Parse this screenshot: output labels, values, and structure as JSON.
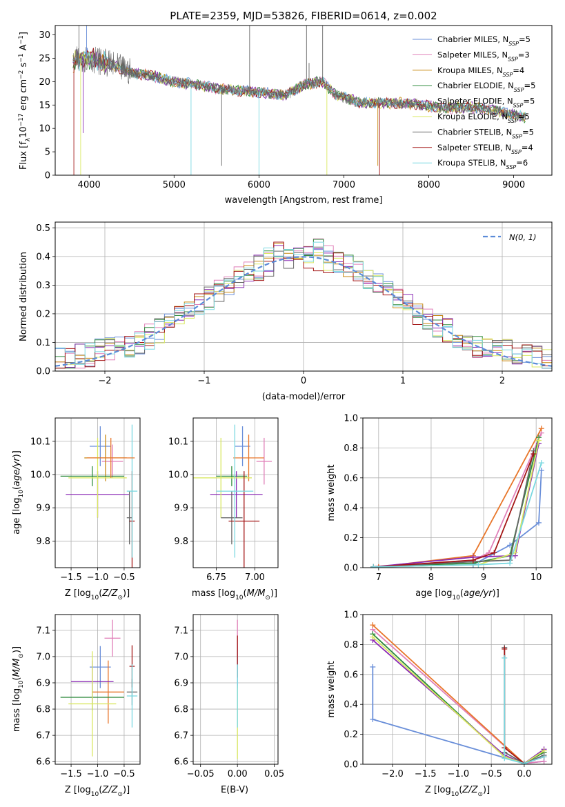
{
  "figure": {
    "title": "PLATE=2359, MJD=53826, FIBERID=0614, z=0.002"
  },
  "colors": {
    "Chabrier MILES": "#6a8fd9",
    "Salpeter MILES": "#e07fb8",
    "Kroupa MILES": "#c7870f",
    "Chabrier ELODIE": "#2e8b3c",
    "Salpeter ELODIE": "#8b2bb5",
    "Kroupa ELODIE": "#d9e860",
    "Chabrier STELIB": "#666666",
    "Salpeter STELIB": "#a31515",
    "Kroupa STELIB": "#79d8e0",
    "orange": "#e8762a",
    "normal_curve": "#5b8bd8"
  },
  "chart_data": [
    {
      "id": "spectrum",
      "type": "line",
      "xlabel": "wavelength [Angstrom, rest frame]",
      "ylabel_parts": [
        "Flux [f",
        "λ",
        "10",
        "−17",
        " erg cm",
        "−2",
        " s",
        "−1",
        " A",
        "−1",
        "]"
      ],
      "xlim": [
        3600,
        9450
      ],
      "ylim": [
        0,
        32
      ],
      "xticks": [
        4000,
        5000,
        6000,
        7000,
        8000,
        9000
      ],
      "yticks": [
        0,
        5,
        10,
        15,
        20,
        25,
        30
      ],
      "continuum": [
        [
          3800,
          24
        ],
        [
          3900,
          25
        ],
        [
          4000,
          25
        ],
        [
          4200,
          24
        ],
        [
          4500,
          22
        ],
        [
          4800,
          21
        ],
        [
          5000,
          20
        ],
        [
          5200,
          19.5
        ],
        [
          5500,
          18.5
        ],
        [
          5800,
          18
        ],
        [
          6000,
          17.8
        ],
        [
          6300,
          17
        ],
        [
          6550,
          19.5
        ],
        [
          6750,
          20
        ],
        [
          6900,
          17.2
        ],
        [
          7200,
          15.5
        ],
        [
          7500,
          15.5
        ],
        [
          7800,
          15.3
        ],
        [
          8000,
          14.8
        ],
        [
          8200,
          14.3
        ],
        [
          8500,
          14.5
        ],
        [
          8800,
          13.8
        ],
        [
          9100,
          12.5
        ]
      ],
      "legend": [
        {
          "name": "Chabrier MILES",
          "n": "5"
        },
        {
          "name": "Salpeter MILES",
          "n": "3"
        },
        {
          "name": "Kroupa MILES",
          "n": "4"
        },
        {
          "name": "Chabrier ELODIE",
          "n": "5"
        },
        {
          "name": "Salpeter ELODIE",
          "n": "5"
        },
        {
          "name": "Kroupa ELODIE",
          "n": "5"
        },
        {
          "name": "Chabrier STELIB",
          "n": "5"
        },
        {
          "name": "Salpeter STELIB",
          "n": "4"
        },
        {
          "name": "Kroupa STELIB",
          "n": "6"
        }
      ],
      "legend_placement": "upper right",
      "grid": false
    },
    {
      "id": "residuals",
      "type": "histogram",
      "xlabel": "(data-model)/error",
      "ylabel": "Normed distribution",
      "xlim": [
        -2.5,
        2.5
      ],
      "ylim": [
        0,
        0.52
      ],
      "xticks": [
        -2,
        -1,
        0,
        1,
        2
      ],
      "yticks": [
        0.0,
        0.1,
        0.2,
        0.3,
        0.4,
        0.5
      ],
      "legend": "N(0, 1)",
      "legend_placement": "upper right",
      "grid": true
    },
    {
      "id": "age-vs-Z",
      "type": "errorbar",
      "xlabel": "Z [log10(Z/Z⊙)]",
      "ylabel": "age  [log10(age/yr)]",
      "xlim": [
        -1.8,
        -0.2
      ],
      "ylim": [
        9.72,
        10.17
      ],
      "xticks": [
        -1.5,
        -1.0,
        -0.5
      ],
      "yticks": [
        9.8,
        9.9,
        10.0,
        10.1
      ],
      "points": [
        {
          "c": "Chabrier MILES",
          "x": -0.95,
          "xe": 0.2,
          "y": 10.085,
          "ye": 0.06
        },
        {
          "c": "Salpeter MILES",
          "x": -0.72,
          "xe": 0.2,
          "y": 10.04,
          "ye": 0.05
        },
        {
          "c": "Kroupa MILES",
          "x": -0.85,
          "xe": 0.4,
          "y": 10.05,
          "ye": 0.07
        },
        {
          "c": "Chabrier ELODIE",
          "x": -1.1,
          "xe": 0.6,
          "y": 9.995,
          "ye": 0.03
        },
        {
          "c": "Salpeter ELODIE",
          "x": -1.0,
          "xe": 0.6,
          "y": 9.94,
          "ye": 0.07
        },
        {
          "c": "Kroupa ELODIE",
          "x": -1.0,
          "xe": 0.55,
          "y": 9.99,
          "ye": 0.12
        },
        {
          "c": "Chabrier STELIB",
          "x": -0.4,
          "xe": 0.05,
          "y": 9.87,
          "ye": 0.08
        },
        {
          "c": "Salpeter STELIB",
          "x": -0.35,
          "xe": 0.05,
          "y": 9.86,
          "ye": 0.15
        },
        {
          "c": "Kroupa STELIB",
          "x": -0.35,
          "xe": 0.1,
          "y": 9.95,
          "ye": 0.2
        },
        {
          "c": "orange",
          "x": -0.75,
          "xe": 0.45,
          "y": 10.05,
          "ye": 0.06
        }
      ],
      "grid": true
    },
    {
      "id": "age-vs-mass",
      "type": "errorbar",
      "xlabel": "mass [log10(M/M⊙)]",
      "ylabel": "",
      "xlim": [
        6.6,
        7.15
      ],
      "ylim": [
        9.72,
        10.17
      ],
      "xticks": [
        6.75,
        7.0
      ],
      "yticks": [
        9.8,
        9.9,
        10.0,
        10.1
      ],
      "points": [
        {
          "c": "Chabrier MILES",
          "x": 6.92,
          "xe": 0.05,
          "y": 10.085,
          "ye": 0.06
        },
        {
          "c": "Salpeter MILES",
          "x": 7.06,
          "xe": 0.05,
          "y": 10.04,
          "ye": 0.07
        },
        {
          "c": "orange",
          "x": 6.96,
          "xe": 0.1,
          "y": 10.05,
          "ye": 0.07
        },
        {
          "c": "Chabrier ELODIE",
          "x": 6.85,
          "xe": 0.1,
          "y": 9.995,
          "ye": 0.03
        },
        {
          "c": "Salpeter ELODIE",
          "x": 6.88,
          "xe": 0.17,
          "y": 9.94,
          "ye": 0.07
        },
        {
          "c": "Kroupa ELODIE",
          "x": 6.78,
          "xe": 0.2,
          "y": 9.99,
          "ye": 0.12
        },
        {
          "c": "Chabrier STELIB",
          "x": 6.85,
          "xe": 0.07,
          "y": 9.87,
          "ye": 0.08
        },
        {
          "c": "Salpeter STELIB",
          "x": 6.93,
          "xe": 0.1,
          "y": 9.86,
          "ye": 0.15
        },
        {
          "c": "Kroupa STELIB",
          "x": 6.87,
          "xe": 0.12,
          "y": 9.95,
          "ye": 0.2
        }
      ],
      "grid": true
    },
    {
      "id": "weight-vs-age",
      "type": "line",
      "xlabel": "age  [log10(age/yr)]",
      "ylabel": "mass weight",
      "xlim": [
        6.7,
        10.3
      ],
      "ylim": [
        0.0,
        1.0
      ],
      "xticks": [
        7,
        8,
        9,
        10
      ],
      "yticks": [
        0.0,
        0.2,
        0.4,
        0.6,
        0.8,
        1.0
      ],
      "series": [
        {
          "c": "Chabrier MILES",
          "x": [
            7.0,
            8.8,
            9.5,
            10.05,
            10.1
          ],
          "y": [
            0.005,
            0.02,
            0.15,
            0.3,
            0.65
          ]
        },
        {
          "c": "Salpeter MILES",
          "x": [
            7.0,
            8.8,
            9.1,
            10.1
          ],
          "y": [
            0.005,
            0.05,
            0.1,
            0.9
          ]
        },
        {
          "c": "orange",
          "x": [
            7.0,
            8.8,
            10.1
          ],
          "y": [
            0.005,
            0.08,
            0.93
          ]
        },
        {
          "c": "Chabrier ELODIE",
          "x": [
            6.9,
            8.8,
            9.5,
            10.05
          ],
          "y": [
            0.005,
            0.03,
            0.08,
            0.87
          ]
        },
        {
          "c": "Salpeter ELODIE",
          "x": [
            6.9,
            8.8,
            9.6,
            10.05
          ],
          "y": [
            0.005,
            0.07,
            0.08,
            0.83
          ]
        },
        {
          "c": "Kroupa ELODIE",
          "x": [
            6.9,
            8.9,
            9.6,
            10.05
          ],
          "y": [
            0.005,
            0.02,
            0.1,
            0.85
          ]
        },
        {
          "c": "Chabrier STELIB",
          "x": [
            6.9,
            8.8,
            9.5,
            9.95
          ],
          "y": [
            0.005,
            0.04,
            0.05,
            0.78
          ]
        },
        {
          "c": "Salpeter STELIB",
          "x": [
            6.9,
            8.8,
            9.2,
            9.95
          ],
          "y": [
            0.005,
            0.05,
            0.1,
            0.76
          ]
        },
        {
          "c": "Kroupa STELIB",
          "x": [
            6.9,
            8.9,
            9.5,
            10.1
          ],
          "y": [
            0.005,
            0.02,
            0.03,
            0.7
          ]
        }
      ],
      "grid": true
    },
    {
      "id": "mass-vs-Z",
      "type": "errorbar",
      "xlabel": "Z [log10(Z/Z⊙)]",
      "ylabel": "mass [log10(M/M⊙)]",
      "xlim": [
        -1.8,
        -0.2
      ],
      "ylim": [
        6.59,
        7.16
      ],
      "xticks": [
        -1.5,
        -1.0,
        -0.5
      ],
      "yticks": [
        6.6,
        6.7,
        6.8,
        6.9,
        7.0,
        7.1
      ],
      "points": [
        {
          "c": "Chabrier MILES",
          "x": -0.95,
          "xe": 0.2,
          "y": 6.96,
          "ye": 0.08
        },
        {
          "c": "Salpeter MILES",
          "x": -0.72,
          "xe": 0.15,
          "y": 7.07,
          "ye": 0.07
        },
        {
          "c": "orange",
          "x": -0.8,
          "xe": 0.3,
          "y": 6.865,
          "ye": 0.12
        },
        {
          "c": "Chabrier ELODIE",
          "x": -1.1,
          "xe": 0.6,
          "y": 6.845,
          "ye": 0.05
        },
        {
          "c": "Salpeter ELODIE",
          "x": -1.1,
          "xe": 0.4,
          "y": 6.905,
          "ye": 0.08
        },
        {
          "c": "Kroupa ELODIE",
          "x": -1.1,
          "xe": 0.45,
          "y": 6.82,
          "ye": 0.2
        },
        {
          "c": "Chabrier STELIB",
          "x": -0.35,
          "xe": 0.1,
          "y": 6.865,
          "ye": 0.05
        },
        {
          "c": "Salpeter STELIB",
          "x": -0.35,
          "xe": 0.05,
          "y": 6.963,
          "ye": 0.08
        },
        {
          "c": "Kroupa STELIB",
          "x": -0.35,
          "xe": 0.1,
          "y": 6.85,
          "ye": 0.12
        }
      ],
      "grid": true
    },
    {
      "id": "mass-vs-EBV",
      "type": "errorbar",
      "xlabel": "E(B-V)",
      "ylabel": "",
      "xlim": [
        -0.06,
        0.055
      ],
      "ylim": [
        6.59,
        7.16
      ],
      "xticks": [
        -0.05,
        0.0,
        0.05
      ],
      "yticks": [
        6.6,
        6.7,
        6.8,
        6.9,
        7.0,
        7.1
      ],
      "points": [
        {
          "c": "Chabrier MILES",
          "x": 0.0,
          "xe": 0,
          "y": 6.96,
          "ye": 0.08
        },
        {
          "c": "Salpeter MILES",
          "x": 0.0,
          "xe": 0,
          "y": 7.07,
          "ye": 0.07
        },
        {
          "c": "Kroupa ELODIE",
          "x": 0.0,
          "xe": 0,
          "y": 6.75,
          "ye": 0.14
        },
        {
          "c": "Salpeter STELIB",
          "x": 0.0,
          "xe": 0,
          "y": 7.0,
          "ye": 0.08
        },
        {
          "c": "Kroupa STELIB",
          "x": 0.0,
          "xe": 0,
          "y": 6.85,
          "ye": 0.12
        }
      ],
      "grid": true
    },
    {
      "id": "weight-vs-Z",
      "type": "line",
      "xlabel": "Z [log10(Z/Z⊙)]",
      "ylabel": "mass weight",
      "xlim": [
        -2.45,
        0.42
      ],
      "ylim": [
        0.0,
        1.0
      ],
      "xticks": [
        -2.0,
        -1.5,
        -1.0,
        -0.5,
        0.0
      ],
      "yticks": [
        0.0,
        0.2,
        0.4,
        0.6,
        0.8,
        1.0
      ],
      "series": [
        {
          "c": "Chabrier MILES",
          "x": [
            -2.3,
            -2.3,
            0.0,
            0.3
          ],
          "y": [
            0.65,
            0.3,
            0.005,
            0.02
          ]
        },
        {
          "c": "Salpeter MILES",
          "x": [
            -2.3,
            0.0,
            0.3
          ],
          "y": [
            0.9,
            0.005,
            0.02
          ]
        },
        {
          "c": "orange",
          "x": [
            -2.3,
            0.0,
            0.3
          ],
          "y": [
            0.93,
            0.005,
            0.08
          ]
        },
        {
          "c": "Chabrier ELODIE",
          "x": [
            -2.3,
            -0.3,
            0.0,
            0.3
          ],
          "y": [
            0.87,
            0.05,
            0.005,
            0.08
          ]
        },
        {
          "c": "Salpeter ELODIE",
          "x": [
            -2.3,
            -0.3,
            0.0,
            0.3
          ],
          "y": [
            0.83,
            0.06,
            0.005,
            0.1
          ]
        },
        {
          "c": "Kroupa ELODIE",
          "x": [
            -2.3,
            -0.3,
            0.0,
            0.3
          ],
          "y": [
            0.85,
            0.05,
            0.005,
            0.09
          ]
        },
        {
          "c": "Chabrier STELIB",
          "x": [
            -0.3,
            -0.3,
            0.0,
            0.3
          ],
          "y": [
            0.78,
            0.08,
            0.005,
            0.06
          ]
        },
        {
          "c": "Salpeter STELIB",
          "x": [
            -0.3,
            -0.3,
            0.0,
            0.3
          ],
          "y": [
            0.77,
            0.11,
            0.005,
            0.05
          ]
        },
        {
          "c": "Kroupa STELIB",
          "x": [
            -0.3,
            -0.3,
            0.0,
            0.3
          ],
          "y": [
            0.71,
            0.04,
            0.005,
            0.05
          ]
        }
      ],
      "grid": true
    }
  ]
}
